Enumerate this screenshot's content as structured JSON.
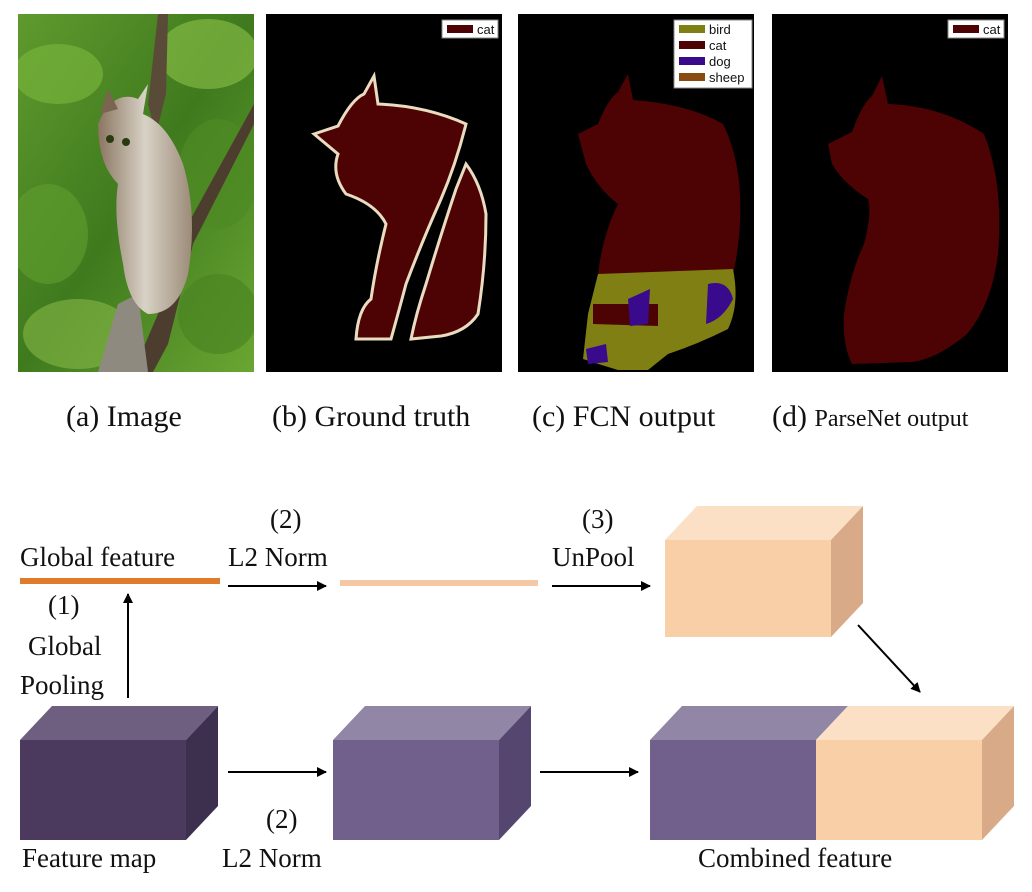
{
  "panels": [
    {
      "id": "a",
      "caption_prefix": "(a)",
      "caption_text": "Image"
    },
    {
      "id": "b",
      "caption_prefix": "(b)",
      "caption_text": "Ground truth",
      "legend": [
        "cat"
      ]
    },
    {
      "id": "c",
      "caption_prefix": "(c)",
      "caption_text": "FCN output",
      "legend": [
        "bird",
        "cat",
        "dog",
        "sheep"
      ]
    },
    {
      "id": "d",
      "caption_prefix": "(d)",
      "caption_text": "ParseNet output",
      "legend": [
        "cat"
      ]
    }
  ],
  "colors": {
    "cat": "#4d0303",
    "bird": "#7f7f13",
    "dog": "#3a0a8c",
    "sheep": "#8a4b12",
    "boundary": "#e9dcc0",
    "global_feature": "#e07b2c",
    "normed_global": "#f4c8a4",
    "unpooled": "#f9cfa8",
    "feature_map": "#4b3a5e",
    "normed_map": "#72608c"
  },
  "diagram": {
    "global_feature_label": "Global feature",
    "step1_number": "(1)",
    "step1_line1": "Global",
    "step1_line2": "Pooling",
    "step2_number_top": "(2)",
    "step2_label_top": "L2 Norm",
    "step3_number": "(3)",
    "step3_label": "UnPool",
    "step2_number_bottom": "(2)",
    "step2_label_bottom": "L2 Norm",
    "feature_map_label": "Feature map",
    "combined_label": "Combined feature"
  }
}
